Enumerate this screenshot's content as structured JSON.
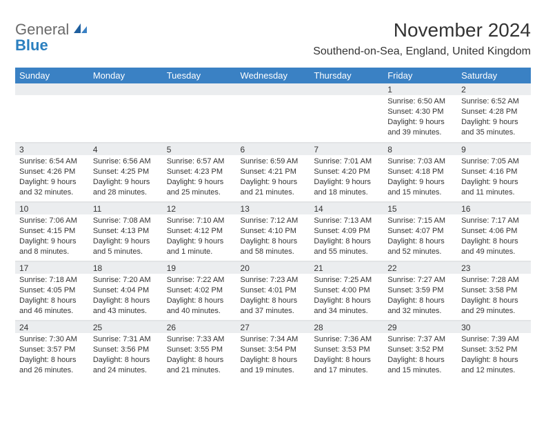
{
  "logo": {
    "word1": "General",
    "word2": "Blue"
  },
  "title": "November 2024",
  "location": "Southend-on-Sea, England, United Kingdom",
  "colors": {
    "header_bg": "#3a81c4",
    "header_text": "#ffffff",
    "daynum_bg": "#ebedef",
    "border": "#e2e4e6",
    "text": "#333333",
    "logo_gray": "#6a6a6a",
    "logo_blue": "#2a7fbf"
  },
  "fonts": {
    "title_size_pt": 21,
    "location_size_pt": 12,
    "header_size_pt": 10,
    "body_size_pt": 8
  },
  "weekdays": [
    "Sunday",
    "Monday",
    "Tuesday",
    "Wednesday",
    "Thursday",
    "Friday",
    "Saturday"
  ],
  "weeks": [
    [
      {
        "num": "",
        "sunrise": "",
        "sunset": "",
        "daylight": ""
      },
      {
        "num": "",
        "sunrise": "",
        "sunset": "",
        "daylight": ""
      },
      {
        "num": "",
        "sunrise": "",
        "sunset": "",
        "daylight": ""
      },
      {
        "num": "",
        "sunrise": "",
        "sunset": "",
        "daylight": ""
      },
      {
        "num": "",
        "sunrise": "",
        "sunset": "",
        "daylight": ""
      },
      {
        "num": "1",
        "sunrise": "Sunrise: 6:50 AM",
        "sunset": "Sunset: 4:30 PM",
        "daylight": "Daylight: 9 hours and 39 minutes."
      },
      {
        "num": "2",
        "sunrise": "Sunrise: 6:52 AM",
        "sunset": "Sunset: 4:28 PM",
        "daylight": "Daylight: 9 hours and 35 minutes."
      }
    ],
    [
      {
        "num": "3",
        "sunrise": "Sunrise: 6:54 AM",
        "sunset": "Sunset: 4:26 PM",
        "daylight": "Daylight: 9 hours and 32 minutes."
      },
      {
        "num": "4",
        "sunrise": "Sunrise: 6:56 AM",
        "sunset": "Sunset: 4:25 PM",
        "daylight": "Daylight: 9 hours and 28 minutes."
      },
      {
        "num": "5",
        "sunrise": "Sunrise: 6:57 AM",
        "sunset": "Sunset: 4:23 PM",
        "daylight": "Daylight: 9 hours and 25 minutes."
      },
      {
        "num": "6",
        "sunrise": "Sunrise: 6:59 AM",
        "sunset": "Sunset: 4:21 PM",
        "daylight": "Daylight: 9 hours and 21 minutes."
      },
      {
        "num": "7",
        "sunrise": "Sunrise: 7:01 AM",
        "sunset": "Sunset: 4:20 PM",
        "daylight": "Daylight: 9 hours and 18 minutes."
      },
      {
        "num": "8",
        "sunrise": "Sunrise: 7:03 AM",
        "sunset": "Sunset: 4:18 PM",
        "daylight": "Daylight: 9 hours and 15 minutes."
      },
      {
        "num": "9",
        "sunrise": "Sunrise: 7:05 AM",
        "sunset": "Sunset: 4:16 PM",
        "daylight": "Daylight: 9 hours and 11 minutes."
      }
    ],
    [
      {
        "num": "10",
        "sunrise": "Sunrise: 7:06 AM",
        "sunset": "Sunset: 4:15 PM",
        "daylight": "Daylight: 9 hours and 8 minutes."
      },
      {
        "num": "11",
        "sunrise": "Sunrise: 7:08 AM",
        "sunset": "Sunset: 4:13 PM",
        "daylight": "Daylight: 9 hours and 5 minutes."
      },
      {
        "num": "12",
        "sunrise": "Sunrise: 7:10 AM",
        "sunset": "Sunset: 4:12 PM",
        "daylight": "Daylight: 9 hours and 1 minute."
      },
      {
        "num": "13",
        "sunrise": "Sunrise: 7:12 AM",
        "sunset": "Sunset: 4:10 PM",
        "daylight": "Daylight: 8 hours and 58 minutes."
      },
      {
        "num": "14",
        "sunrise": "Sunrise: 7:13 AM",
        "sunset": "Sunset: 4:09 PM",
        "daylight": "Daylight: 8 hours and 55 minutes."
      },
      {
        "num": "15",
        "sunrise": "Sunrise: 7:15 AM",
        "sunset": "Sunset: 4:07 PM",
        "daylight": "Daylight: 8 hours and 52 minutes."
      },
      {
        "num": "16",
        "sunrise": "Sunrise: 7:17 AM",
        "sunset": "Sunset: 4:06 PM",
        "daylight": "Daylight: 8 hours and 49 minutes."
      }
    ],
    [
      {
        "num": "17",
        "sunrise": "Sunrise: 7:18 AM",
        "sunset": "Sunset: 4:05 PM",
        "daylight": "Daylight: 8 hours and 46 minutes."
      },
      {
        "num": "18",
        "sunrise": "Sunrise: 7:20 AM",
        "sunset": "Sunset: 4:04 PM",
        "daylight": "Daylight: 8 hours and 43 minutes."
      },
      {
        "num": "19",
        "sunrise": "Sunrise: 7:22 AM",
        "sunset": "Sunset: 4:02 PM",
        "daylight": "Daylight: 8 hours and 40 minutes."
      },
      {
        "num": "20",
        "sunrise": "Sunrise: 7:23 AM",
        "sunset": "Sunset: 4:01 PM",
        "daylight": "Daylight: 8 hours and 37 minutes."
      },
      {
        "num": "21",
        "sunrise": "Sunrise: 7:25 AM",
        "sunset": "Sunset: 4:00 PM",
        "daylight": "Daylight: 8 hours and 34 minutes."
      },
      {
        "num": "22",
        "sunrise": "Sunrise: 7:27 AM",
        "sunset": "Sunset: 3:59 PM",
        "daylight": "Daylight: 8 hours and 32 minutes."
      },
      {
        "num": "23",
        "sunrise": "Sunrise: 7:28 AM",
        "sunset": "Sunset: 3:58 PM",
        "daylight": "Daylight: 8 hours and 29 minutes."
      }
    ],
    [
      {
        "num": "24",
        "sunrise": "Sunrise: 7:30 AM",
        "sunset": "Sunset: 3:57 PM",
        "daylight": "Daylight: 8 hours and 26 minutes."
      },
      {
        "num": "25",
        "sunrise": "Sunrise: 7:31 AM",
        "sunset": "Sunset: 3:56 PM",
        "daylight": "Daylight: 8 hours and 24 minutes."
      },
      {
        "num": "26",
        "sunrise": "Sunrise: 7:33 AM",
        "sunset": "Sunset: 3:55 PM",
        "daylight": "Daylight: 8 hours and 21 minutes."
      },
      {
        "num": "27",
        "sunrise": "Sunrise: 7:34 AM",
        "sunset": "Sunset: 3:54 PM",
        "daylight": "Daylight: 8 hours and 19 minutes."
      },
      {
        "num": "28",
        "sunrise": "Sunrise: 7:36 AM",
        "sunset": "Sunset: 3:53 PM",
        "daylight": "Daylight: 8 hours and 17 minutes."
      },
      {
        "num": "29",
        "sunrise": "Sunrise: 7:37 AM",
        "sunset": "Sunset: 3:52 PM",
        "daylight": "Daylight: 8 hours and 15 minutes."
      },
      {
        "num": "30",
        "sunrise": "Sunrise: 7:39 AM",
        "sunset": "Sunset: 3:52 PM",
        "daylight": "Daylight: 8 hours and 12 minutes."
      }
    ]
  ]
}
